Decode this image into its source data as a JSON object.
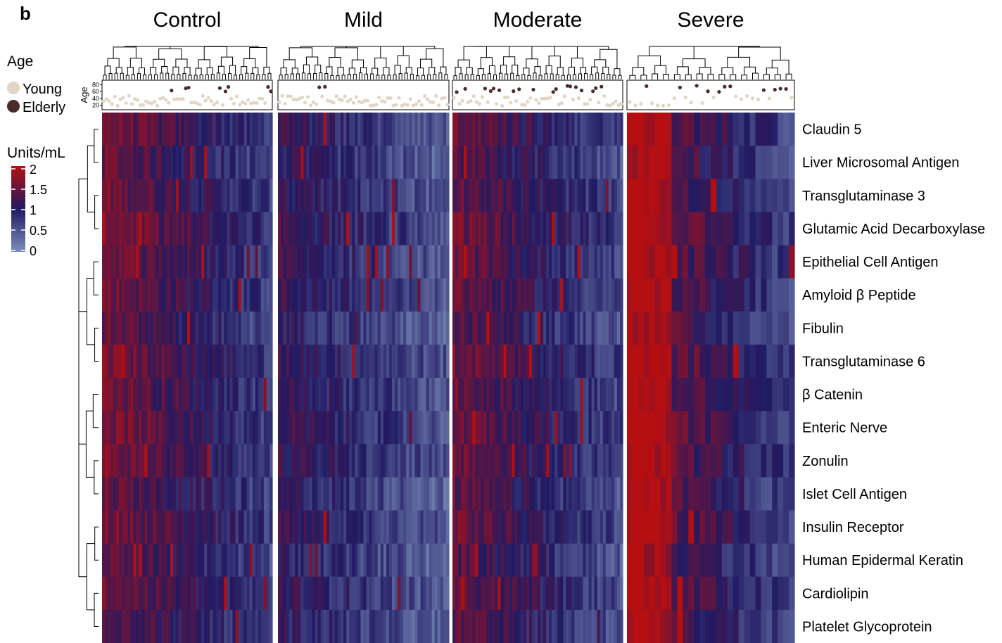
{
  "panel_label": "b",
  "colors": {
    "young": "#e3d5c5",
    "elderly": "#4a2a2a",
    "scale_low": "#7b8ebb",
    "scale_mid": "#211a63",
    "scale_high": "#b50f12",
    "line": "#000000"
  },
  "chart_data": {
    "type": "heatmap",
    "groups": [
      {
        "name": "Control",
        "samples": 60,
        "elderly_fraction": 0.22,
        "base": 1.05,
        "intensity": 1.0
      },
      {
        "name": "Mild",
        "samples": 60,
        "elderly_fraction": 0.05,
        "base": 0.72,
        "intensity": 0.8
      },
      {
        "name": "Moderate",
        "samples": 60,
        "elderly_fraction": 0.3,
        "base": 0.95,
        "intensity": 1.0
      },
      {
        "name": "Severe",
        "samples": 30,
        "elderly_fraction": 0.45,
        "base": 1.05,
        "intensity": 1.2
      }
    ],
    "rows": [
      "Claudin 5",
      "Liver Microsomal Antigen",
      "Transglutaminase 3",
      "Glutamic Acid Decarboxylase",
      "Epithelial Cell Antigen",
      "Amyloid β Peptide",
      "Fibulin",
      "Transglutaminase 6",
      "β Catenin",
      "Enteric Nerve",
      "Zonulin",
      "Islet Cell Antigen",
      "Insulin Receptor",
      "Human Epidermal Keratin",
      "Cardiolipin",
      "Platelet Glycoprotein"
    ],
    "age_track": {
      "label": "Age",
      "ticks": [
        "80",
        "60",
        "40",
        "20"
      ],
      "range": [
        15,
        85
      ]
    },
    "legend_age": {
      "title": "Age",
      "items": [
        {
          "label": "Young",
          "color": "#e3d5c5"
        },
        {
          "label": "Elderly",
          "color": "#4a2a2a"
        }
      ]
    },
    "legend_scale": {
      "title": "Units/mL",
      "ticks": [
        "2",
        "1.5",
        "1",
        "0.5",
        "0"
      ],
      "range": [
        0,
        2
      ]
    },
    "row_dendrogram": true,
    "column_dendrograms": true,
    "color_range": [
      0,
      2
    ]
  }
}
